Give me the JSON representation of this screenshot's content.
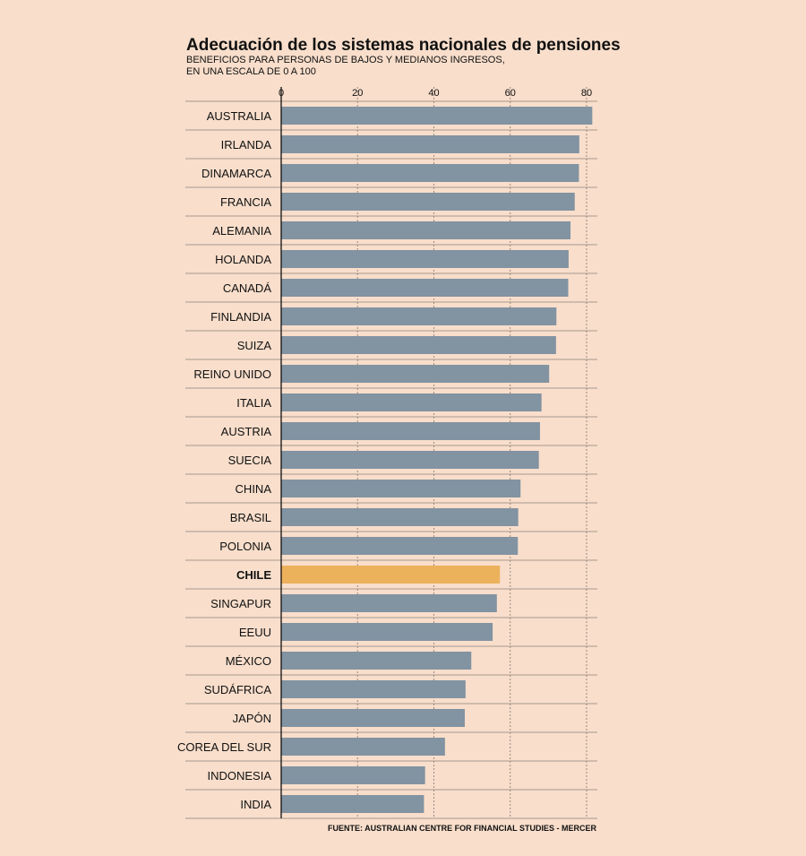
{
  "chart_data": {
    "type": "bar",
    "orientation": "horizontal",
    "title": "Adecuación de los sistemas nacionales de pensiones",
    "subtitle_lines": [
      "BENEFICIOS PARA PERSONAS DE BAJOS Y MEDIANOS INGRESOS,",
      "EN UNA ESCALA DE 0 A 100"
    ],
    "xlim": [
      0,
      84
    ],
    "xticks": [
      0,
      20,
      40,
      60,
      80
    ],
    "grid": true,
    "categories": [
      "AUSTRALIA",
      "IRLANDA",
      "DINAMARCA",
      "FRANCIA",
      "ALEMANIA",
      "HOLANDA",
      "CANADÁ",
      "FINLANDIA",
      "SUIZA",
      "REINO UNIDO",
      "ITALIA",
      "AUSTRIA",
      "SUECIA",
      "CHINA",
      "BRASIL",
      "POLONIA",
      "CHILE",
      "SINGAPUR",
      "EEUU",
      "MÉXICO",
      "SUDÁFRICA",
      "JAPÓN",
      "COREA DEL SUR",
      "INDONESIA",
      "INDIA"
    ],
    "values": [
      81.5,
      78.1,
      78.0,
      76.9,
      75.8,
      75.3,
      75.2,
      72.1,
      72.0,
      70.2,
      68.2,
      67.8,
      67.5,
      62.7,
      62.1,
      62.0,
      57.3,
      56.5,
      55.4,
      49.8,
      48.3,
      48.1,
      42.9,
      37.7,
      37.4
    ],
    "highlight": "CHILE",
    "source": "FUENTE: AUSTRALIAN CENTRE FOR FINANCIAL STUDIES - MERCER"
  },
  "colors": {
    "background": "#f8decb",
    "bar": "#8293a2",
    "highlight": "#ecb15b",
    "grid": "#9a8a80",
    "separator": "#8d8178",
    "axis": "#111111",
    "text": "#111111"
  }
}
